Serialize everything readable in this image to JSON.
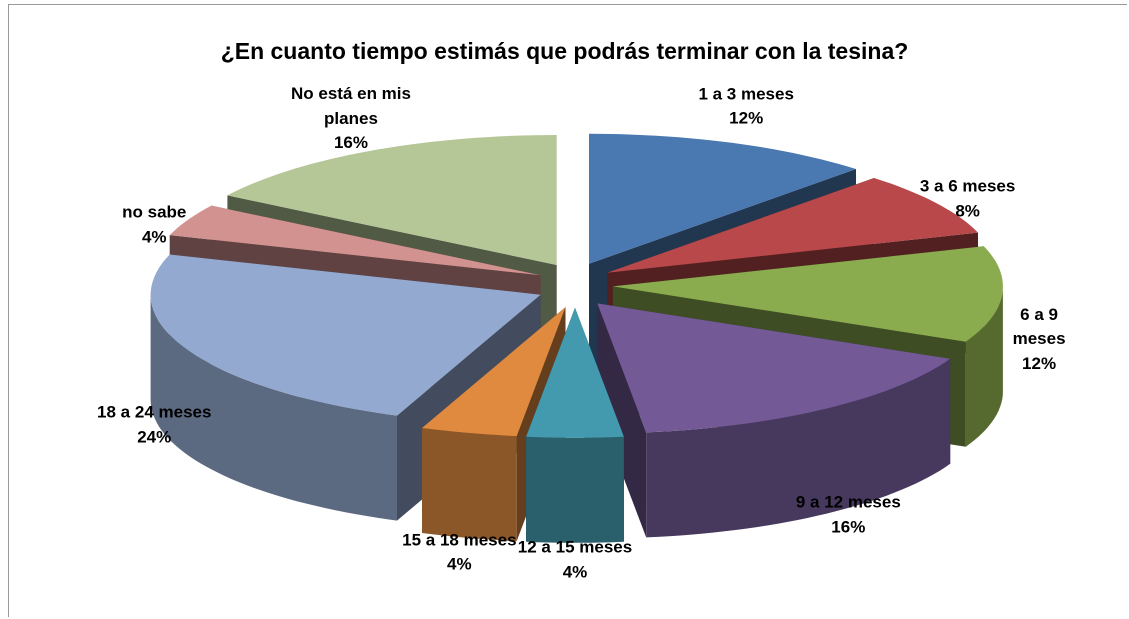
{
  "chart_data": {
    "type": "pie",
    "title": "¿En cuanto tiempo estimás que podrás terminar con la tesina?",
    "categories": [
      "1 a 3 meses",
      "3 a 6 meses",
      "6 a 9 meses",
      "9 a 12 meses",
      "12 a 15 meses",
      "15 a 18 meses",
      "18 a 24 meses",
      "no sabe",
      "No está en mis planes"
    ],
    "values": [
      12,
      8,
      12,
      16,
      4,
      4,
      24,
      4,
      16
    ],
    "value_labels": [
      "12%",
      "8%",
      "12%",
      "16%",
      "4%",
      "4%",
      "24%",
      "4%",
      "16%"
    ],
    "colors": [
      "#4a78b0",
      "#b8484a",
      "#8aab4e",
      "#735a96",
      "#4399ae",
      "#e08a40",
      "#93a9d0",
      "#d29290",
      "#b5c796"
    ]
  }
}
